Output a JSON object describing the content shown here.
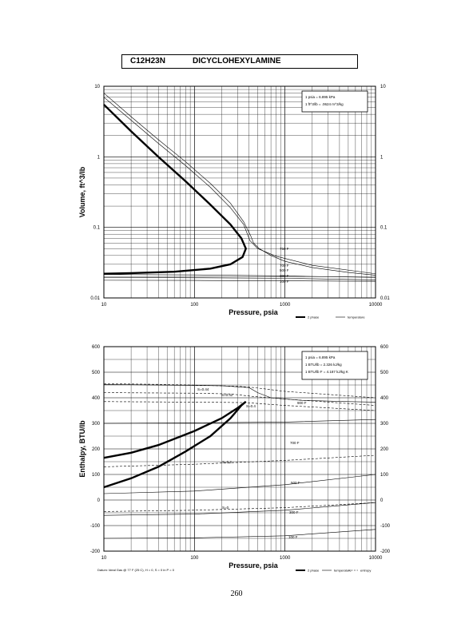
{
  "header": {
    "formula": "C12H23N",
    "compound": "DICYCLOHEXYLAMINE"
  },
  "page_number": "260",
  "chart_data": [
    {
      "type": "line",
      "title": "",
      "xlabel": "Pressure,  psia",
      "ylabel": "Volume, ft^3/lb",
      "xscale": "log",
      "yscale": "log",
      "xlim": [
        10,
        10000
      ],
      "ylim": [
        0.01,
        10
      ],
      "x_ticks": [
        "10",
        "100",
        "1000",
        "10000"
      ],
      "y_ticks_left": [
        "0.01",
        "0.1",
        "1",
        "10"
      ],
      "y_ticks_right": [
        "0.01",
        "0.1",
        "1",
        "10"
      ],
      "grid": true,
      "conversion_note": [
        "1 psia  =  6.895 kPa",
        "1 ft^3/lb  =  .0624 m^3/kg"
      ],
      "legend": [
        "2 phase",
        "temperature"
      ],
      "legend_position": "below-right",
      "isotherm_labels": [
        "750 F",
        "700 F",
        "500 F",
        "300 F",
        "100 F"
      ],
      "series": [
        {
          "name": "2 phase",
          "style": "thick",
          "points": [
            [
              10,
              5.5
            ],
            [
              20,
              2.3
            ],
            [
              40,
              1.0
            ],
            [
              80,
              0.45
            ],
            [
              150,
              0.21
            ],
            [
              250,
              0.11
            ],
            [
              330,
              0.07
            ],
            [
              370,
              0.05
            ],
            [
              340,
              0.038
            ],
            [
              250,
              0.03
            ],
            [
              150,
              0.026
            ],
            [
              60,
              0.0235
            ],
            [
              20,
              0.0225
            ],
            [
              10,
              0.022
            ]
          ]
        },
        {
          "name": "750 F",
          "style": "thin",
          "points": [
            [
              10,
              8.0
            ],
            [
              20,
              3.7
            ],
            [
              40,
              1.75
            ],
            [
              80,
              0.85
            ],
            [
              150,
              0.42
            ],
            [
              250,
              0.22
            ],
            [
              350,
              0.12
            ],
            [
              420,
              0.075
            ],
            [
              450,
              0.06
            ],
            [
              520,
              0.05
            ],
            [
              700,
              0.04
            ],
            [
              1000,
              0.033
            ],
            [
              2000,
              0.027
            ],
            [
              5000,
              0.023
            ],
            [
              10000,
              0.021
            ]
          ]
        },
        {
          "name": "700 F",
          "style": "thin",
          "points": [
            [
              10,
              7.0
            ],
            [
              20,
              3.3
            ],
            [
              40,
              1.55
            ],
            [
              80,
              0.75
            ],
            [
              150,
              0.37
            ],
            [
              250,
              0.19
            ],
            [
              350,
              0.11
            ],
            [
              410,
              0.065
            ],
            [
              500,
              0.05
            ],
            [
              800,
              0.039
            ],
            [
              2000,
              0.029
            ],
            [
              10000,
              0.022
            ]
          ]
        },
        {
          "name": "500 F",
          "style": "thin",
          "points": [
            [
              10,
              0.0215
            ],
            [
              100,
              0.0212
            ],
            [
              1000,
              0.0205
            ],
            [
              10000,
              0.0195
            ]
          ]
        },
        {
          "name": "300 F",
          "style": "thin",
          "points": [
            [
              10,
              0.0195
            ],
            [
              100,
              0.0193
            ],
            [
              1000,
              0.019
            ],
            [
              10000,
              0.018
            ]
          ]
        },
        {
          "name": "100 F",
          "style": "thin",
          "points": [
            [
              10,
              0.0178
            ],
            [
              100,
              0.0177
            ],
            [
              1000,
              0.0175
            ],
            [
              10000,
              0.0172
            ]
          ]
        }
      ]
    },
    {
      "type": "line",
      "title": "",
      "xlabel": "Pressure,  psia",
      "ylabel": "Enthalpy, BTU/lb",
      "xscale": "log",
      "yscale": "linear",
      "xlim": [
        10,
        10000
      ],
      "ylim": [
        -200,
        600
      ],
      "x_ticks": [
        "10",
        "100",
        "1000",
        "10000"
      ],
      "y_ticks_left": [
        "600",
        "500",
        "400",
        "300",
        "200",
        "100",
        "0",
        "-100",
        "-200"
      ],
      "y_ticks_right": [
        "600",
        "500",
        "400",
        "300",
        "200",
        "100",
        "0",
        "-100",
        "-200"
      ],
      "grid": true,
      "conversion_note": [
        "1 psia  =  6.895 kPa",
        "1 BTU/lb  =  2.326 kJ/kg",
        "1 BTU/lb F  =  4.187 kJ/kg K"
      ],
      "legend": [
        "2 phase",
        "temperature",
        "entropy"
      ],
      "legend_position": "below-right",
      "datum_note": "Datum: Ideal Gas @ 77 F (25 C),  H = 0,  S = 0 in P = 0",
      "curve_labels": [
        "S=0.44",
        "S=0.42",
        "S=0.4",
        "S=0.2",
        "S=0",
        "900 F",
        "700 F",
        "500 F",
        "300 F",
        "100 F"
      ],
      "series": [
        {
          "name": "2 phase",
          "style": "thick",
          "points": [
            [
              10,
              50
            ],
            [
              20,
              85
            ],
            [
              40,
              130
            ],
            [
              80,
              190
            ],
            [
              150,
              250
            ],
            [
              250,
              320
            ],
            [
              330,
              370
            ],
            [
              370,
              385
            ],
            [
              300,
              360
            ],
            [
              200,
              320
            ],
            [
              100,
              270
            ],
            [
              40,
              215
            ],
            [
              20,
              185
            ],
            [
              10,
              165
            ]
          ]
        },
        {
          "name": "S=0.44",
          "style": "dashed",
          "points": [
            [
              10,
              455
            ],
            [
              50,
              452
            ],
            [
              150,
              448
            ],
            [
              300,
              445
            ],
            [
              450,
              440
            ],
            [
              1000,
              425
            ],
            [
              10000,
              400
            ]
          ]
        },
        {
          "name": "S=0.42",
          "style": "dashed",
          "points": [
            [
              10,
              420
            ],
            [
              100,
              418
            ],
            [
              250,
              415
            ],
            [
              450,
              405
            ],
            [
              1000,
              395
            ],
            [
              10000,
              370
            ]
          ]
        },
        {
          "name": "S=0.4",
          "style": "dashed",
          "points": [
            [
              10,
              385
            ],
            [
              100,
              383
            ],
            [
              370,
              381
            ],
            [
              1000,
              370
            ],
            [
              10000,
              350
            ]
          ]
        },
        {
          "name": "S=0.2",
          "style": "dashed",
          "points": [
            [
              10,
              130
            ],
            [
              100,
              140
            ],
            [
              1000,
              155
            ],
            [
              10000,
              175
            ]
          ]
        },
        {
          "name": "S=0",
          "style": "dashed",
          "points": [
            [
              10,
              -45
            ],
            [
              100,
              -40
            ],
            [
              1000,
              -30
            ],
            [
              10000,
              -10
            ]
          ]
        },
        {
          "name": "900 F",
          "style": "thin",
          "points": [
            [
              10,
              452
            ],
            [
              200,
              447
            ],
            [
              400,
              440
            ],
            [
              500,
              420
            ],
            [
              700,
              400
            ],
            [
              1500,
              390
            ],
            [
              5000,
              385
            ],
            [
              10000,
              383
            ]
          ]
        },
        {
          "name": "700 F",
          "style": "thin",
          "points": [
            [
              10,
              300
            ],
            [
              100,
              302
            ],
            [
              1000,
              305
            ],
            [
              10000,
              315
            ]
          ]
        },
        {
          "name": "500 F",
          "style": "thin",
          "points": [
            [
              10,
              25
            ],
            [
              100,
              35
            ],
            [
              1000,
              60
            ],
            [
              10000,
              100
            ]
          ]
        },
        {
          "name": "300 F",
          "style": "thin",
          "points": [
            [
              10,
              -60
            ],
            [
              100,
              -55
            ],
            [
              1000,
              -40
            ],
            [
              10000,
              -10
            ]
          ]
        },
        {
          "name": "100 F",
          "style": "thin",
          "points": [
            [
              10,
              -150
            ],
            [
              100,
              -148
            ],
            [
              1000,
              -140
            ],
            [
              10000,
              -115
            ]
          ]
        }
      ]
    }
  ]
}
